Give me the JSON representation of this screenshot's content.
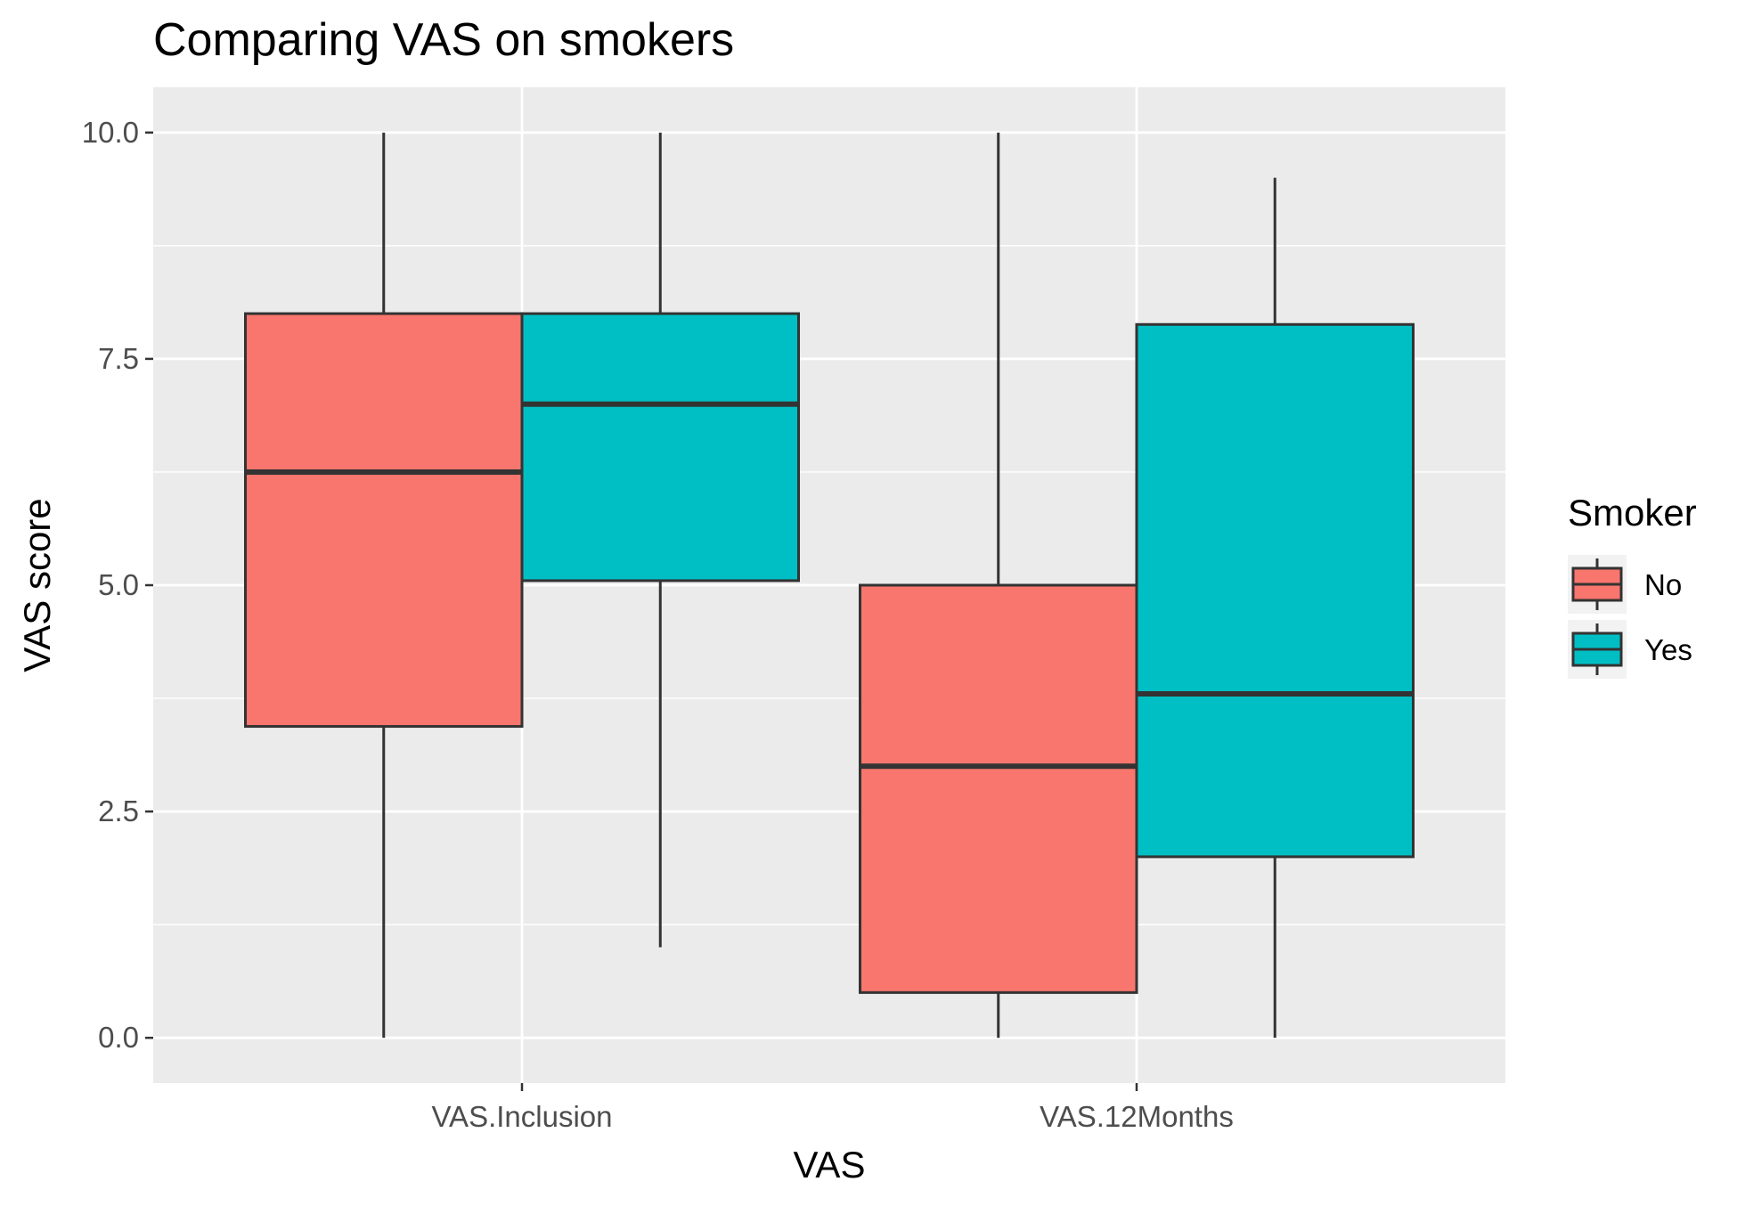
{
  "chart_data": {
    "type": "box",
    "title": "Comparing VAS on smokers",
    "xlabel": "VAS",
    "ylabel": "VAS score",
    "categories": [
      "VAS.Inclusion",
      "VAS.12Months"
    ],
    "ylim": [
      -0.5,
      10.5
    ],
    "yticks": [
      0.0,
      2.5,
      5.0,
      7.5,
      10.0
    ],
    "ytick_labels": [
      "0.0",
      "2.5",
      "5.0",
      "7.5",
      "10.0"
    ],
    "grid": true,
    "legend": {
      "title": "Smoker",
      "position": "right",
      "entries": [
        "No",
        "Yes"
      ]
    },
    "series": [
      {
        "name": "No",
        "color": "#F8766D",
        "boxes": [
          {
            "category": "VAS.Inclusion",
            "min": 0.0,
            "q1": 3.44,
            "median": 6.25,
            "q3": 8.0,
            "max": 10.0
          },
          {
            "category": "VAS.12Months",
            "min": 0.0,
            "q1": 0.5,
            "median": 3.0,
            "q3": 5.0,
            "max": 10.0
          }
        ]
      },
      {
        "name": "Yes",
        "color": "#00BFC4",
        "boxes": [
          {
            "category": "VAS.Inclusion",
            "min": 1.0,
            "q1": 5.05,
            "median": 7.0,
            "q3": 8.0,
            "max": 10.0
          },
          {
            "category": "VAS.12Months",
            "min": 0.0,
            "q1": 2.0,
            "median": 3.8,
            "q3": 7.88,
            "max": 9.5
          }
        ]
      }
    ],
    "colors": {
      "panel_background": "#EBEBEB",
      "grid_major": "#FFFFFF",
      "outline": "#333333"
    }
  }
}
